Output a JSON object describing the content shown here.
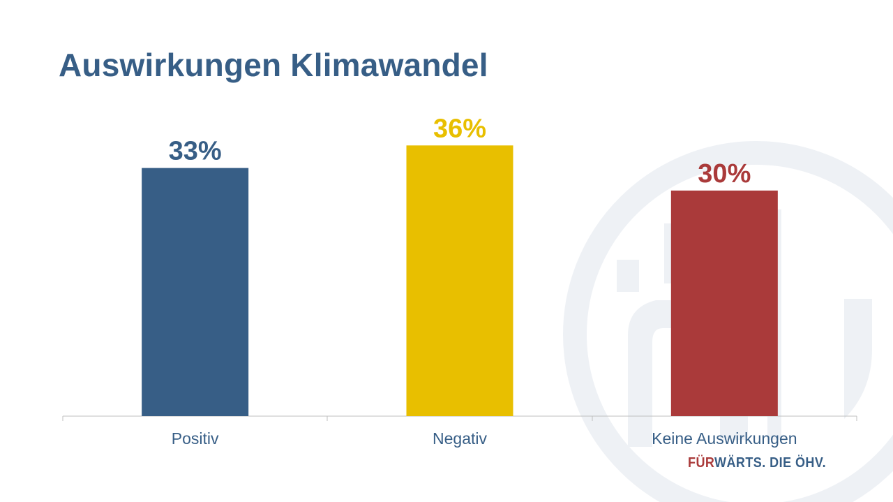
{
  "title": "Auswirkungen Klimawandel",
  "chart_data": {
    "type": "bar",
    "title": "Auswirkungen Klimawandel",
    "categories": [
      "Positiv",
      "Negativ",
      "Keine Auswirkungen"
    ],
    "values": [
      33,
      36,
      30
    ],
    "value_labels": [
      "33%",
      "36%",
      "30%"
    ],
    "colors": [
      "#375e86",
      "#e8bf00",
      "#aa3a3a"
    ],
    "xlabel": "",
    "ylabel": "",
    "ylim": [
      0,
      40
    ],
    "grid": false,
    "unit": "%"
  },
  "brand": {
    "accent": "FÜR",
    "rest": "WÄRTS. DIE ÖHV."
  },
  "colors": {
    "title": "#375e86",
    "axis": "#bfbfbf",
    "watermark": "#eef1f5"
  }
}
